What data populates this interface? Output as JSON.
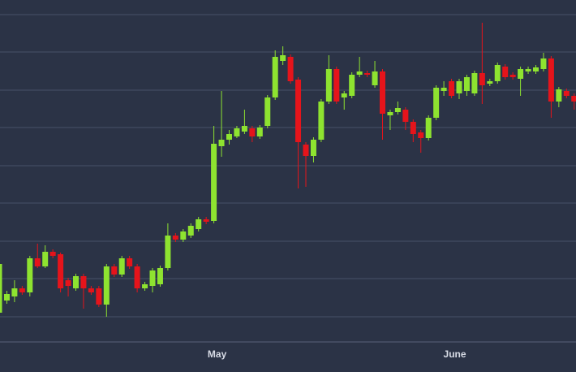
{
  "chart_data": {
    "type": "candlestick",
    "categories": [
      null,
      null,
      null,
      null,
      null,
      null,
      null,
      null,
      null,
      null,
      null,
      null,
      null,
      null,
      null,
      null,
      null,
      null,
      null,
      null,
      null,
      null,
      null,
      null,
      null,
      null,
      null,
      null,
      "May",
      null,
      null,
      null,
      null,
      null,
      null,
      null,
      null,
      null,
      null,
      null,
      null,
      null,
      null,
      null,
      null,
      null,
      null,
      null,
      null,
      null,
      null,
      null,
      null,
      null,
      null,
      null,
      null,
      null,
      null,
      "June",
      null,
      null,
      null,
      null,
      null,
      null,
      null,
      null,
      null,
      null,
      null,
      null,
      null,
      null,
      null,
      null
    ],
    "open": [
      35,
      50,
      55,
      65,
      60,
      102,
      92,
      110,
      107,
      75,
      65,
      80,
      65,
      65,
      45,
      92,
      82,
      102,
      92,
      65,
      68,
      70,
      90,
      130,
      125,
      130,
      138,
      150,
      148,
      240,
      248,
      252,
      258,
      262,
      252,
      265,
      300,
      345,
      350,
      322,
      242,
      228,
      248,
      295,
      335,
      300,
      302,
      328,
      330,
      315,
      332,
      278,
      282,
      285,
      270,
      257,
      250,
      275,
      308,
      320,
      305,
      308,
      305,
      330,
      317,
      320,
      338,
      328,
      323,
      332,
      332,
      335,
      348,
      295,
      308,
      302
    ],
    "high": [
      100,
      62,
      75,
      68,
      105,
      120,
      118,
      113,
      109,
      78,
      83,
      83,
      68,
      68,
      95,
      95,
      105,
      105,
      95,
      73,
      90,
      93,
      145,
      133,
      138,
      145,
      153,
      153,
      265,
      308,
      260,
      265,
      285,
      265,
      266,
      303,
      358,
      363,
      353,
      325,
      245,
      251,
      298,
      352,
      338,
      308,
      331,
      350,
      333,
      345,
      335,
      285,
      295,
      288,
      273,
      260,
      278,
      315,
      320,
      323,
      323,
      328,
      333,
      392,
      323,
      343,
      341,
      331,
      338,
      338,
      340,
      355,
      351,
      313,
      311,
      305
    ],
    "low": [
      32,
      46,
      48,
      57,
      55,
      90,
      90,
      102,
      60,
      55,
      62,
      40,
      57,
      42,
      30,
      79,
      79,
      89,
      60,
      62,
      60,
      67,
      87,
      122,
      122,
      127,
      135,
      144,
      145,
      227,
      242,
      250,
      255,
      245,
      249,
      262,
      297,
      340,
      317,
      188,
      190,
      220,
      245,
      292,
      292,
      285,
      299,
      325,
      325,
      312,
      248,
      260,
      279,
      260,
      245,
      232,
      247,
      272,
      302,
      299,
      298,
      302,
      302,
      292,
      314,
      317,
      322,
      322,
      302,
      329,
      329,
      332,
      275,
      288,
      299,
      285
    ],
    "close": [
      95,
      58,
      65,
      60,
      102,
      92,
      110,
      105,
      65,
      68,
      80,
      65,
      60,
      45,
      92,
      82,
      102,
      92,
      65,
      70,
      87,
      90,
      130,
      125,
      135,
      142,
      150,
      147,
      243,
      248,
      255,
      262,
      265,
      252,
      263,
      300,
      350,
      352,
      320,
      245,
      228,
      248,
      295,
      335,
      295,
      305,
      328,
      332,
      328,
      332,
      280,
      282,
      287,
      270,
      255,
      250,
      275,
      312,
      312,
      302,
      320,
      325,
      330,
      315,
      320,
      340,
      325,
      325,
      335,
      335,
      337,
      348,
      295,
      310,
      302,
      295
    ],
    "up_color": "#8ee330",
    "down_color": "#e5141b",
    "ylim": [
      0,
      420
    ],
    "yticks": [
      30,
      77,
      123,
      170,
      216,
      263,
      309,
      356,
      402
    ],
    "grid": true
  }
}
